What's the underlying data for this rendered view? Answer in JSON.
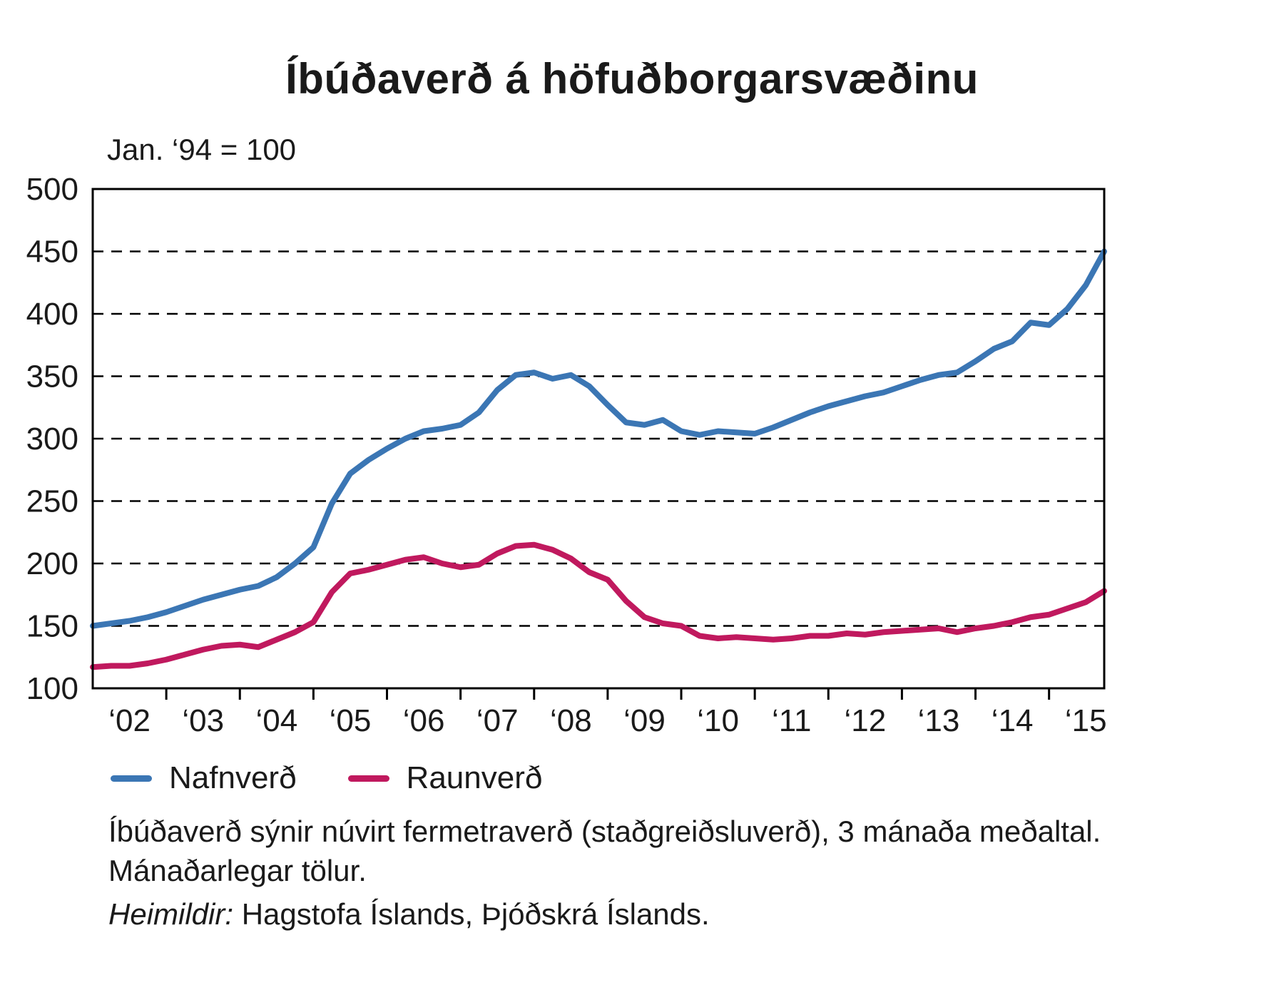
{
  "title": "Íbúðaverð á höfuðborgarsvæðinu",
  "axis_note": "Jan. ‘94 = 100",
  "legend": {
    "items": [
      {
        "label": "Nafnverð"
      },
      {
        "label": "Raunverð"
      }
    ]
  },
  "footnotes": {
    "line1": "Íbúðaverð sýnir núvirt fermetraverð (staðgreiðsluverð), 3 mánaða meðaltal.",
    "line2": "Mánaðarlegar tölur.",
    "source_label": "Heimildir:",
    "source_text": "Hagstofa Íslands, Þjóðskrá Íslands."
  },
  "chart_data": {
    "type": "line",
    "title": "Íbúðaverð á höfuðborgarsvæðinu",
    "index_note": "Jan. ‘94 = 100",
    "xlabel": "",
    "ylabel": "",
    "xlim": [
      2002,
      2015.75
    ],
    "ylim": [
      100,
      500
    ],
    "y_ticks": [
      100,
      150,
      200,
      250,
      300,
      350,
      400,
      450,
      500
    ],
    "x_boundary_ticks": [
      2003,
      2004,
      2005,
      2006,
      2007,
      2008,
      2009,
      2010,
      2011,
      2012,
      2013,
      2014,
      2015
    ],
    "x_labels": [
      "‘02",
      "‘03",
      "‘04",
      "‘05",
      "‘06",
      "‘07",
      "‘08",
      "‘09",
      "‘10",
      "‘11",
      "‘12",
      "‘13",
      "‘14",
      "‘15"
    ],
    "x_label_positions": [
      2002.5,
      2003.5,
      2004.5,
      2005.5,
      2006.5,
      2007.5,
      2008.5,
      2009.5,
      2010.5,
      2011.5,
      2012.5,
      2013.5,
      2014.5,
      2015.5
    ],
    "grid": "horizontal-dashed",
    "legend_position": "bottom-left",
    "x": [
      2002,
      2002.25,
      2002.5,
      2002.75,
      2003,
      2003.25,
      2003.5,
      2003.75,
      2004,
      2004.25,
      2004.5,
      2004.75,
      2005,
      2005.25,
      2005.5,
      2005.75,
      2006,
      2006.25,
      2006.5,
      2006.75,
      2007,
      2007.25,
      2007.5,
      2007.75,
      2008,
      2008.25,
      2008.5,
      2008.75,
      2009,
      2009.25,
      2009.5,
      2009.75,
      2010,
      2010.25,
      2010.5,
      2010.75,
      2011,
      2011.25,
      2011.5,
      2011.75,
      2012,
      2012.25,
      2012.5,
      2012.75,
      2013,
      2013.25,
      2013.5,
      2013.75,
      2014,
      2014.25,
      2014.5,
      2014.75,
      2015,
      2015.25,
      2015.5,
      2015.75
    ],
    "series": [
      {
        "name": "Nafnverð",
        "key": "nafnverd",
        "color": "#3b76b4",
        "values": [
          150,
          152,
          154,
          157,
          161,
          166,
          171,
          175,
          179,
          182,
          189,
          200,
          213,
          248,
          272,
          283,
          292,
          300,
          306,
          308,
          311,
          321,
          339,
          351,
          353,
          348,
          351,
          342,
          327,
          313,
          311,
          315,
          306,
          303,
          306,
          305,
          304,
          309,
          315,
          321,
          326,
          330,
          334,
          337,
          342,
          347,
          351,
          353,
          362,
          372,
          378,
          393,
          391,
          404,
          423,
          450
        ]
      },
      {
        "name": "Raunverð",
        "key": "raunverd",
        "color": "#c0195e",
        "values": [
          117,
          118,
          118,
          120,
          123,
          127,
          131,
          134,
          135,
          133,
          139,
          145,
          153,
          177,
          192,
          195,
          199,
          203,
          205,
          200,
          197,
          199,
          208,
          214,
          215,
          211,
          204,
          193,
          187,
          170,
          157,
          152,
          150,
          142,
          140,
          141,
          140,
          139,
          140,
          142,
          142,
          144,
          143,
          145,
          146,
          147,
          148,
          145,
          148,
          150,
          153,
          157,
          159,
          164,
          169,
          178
        ]
      }
    ]
  }
}
